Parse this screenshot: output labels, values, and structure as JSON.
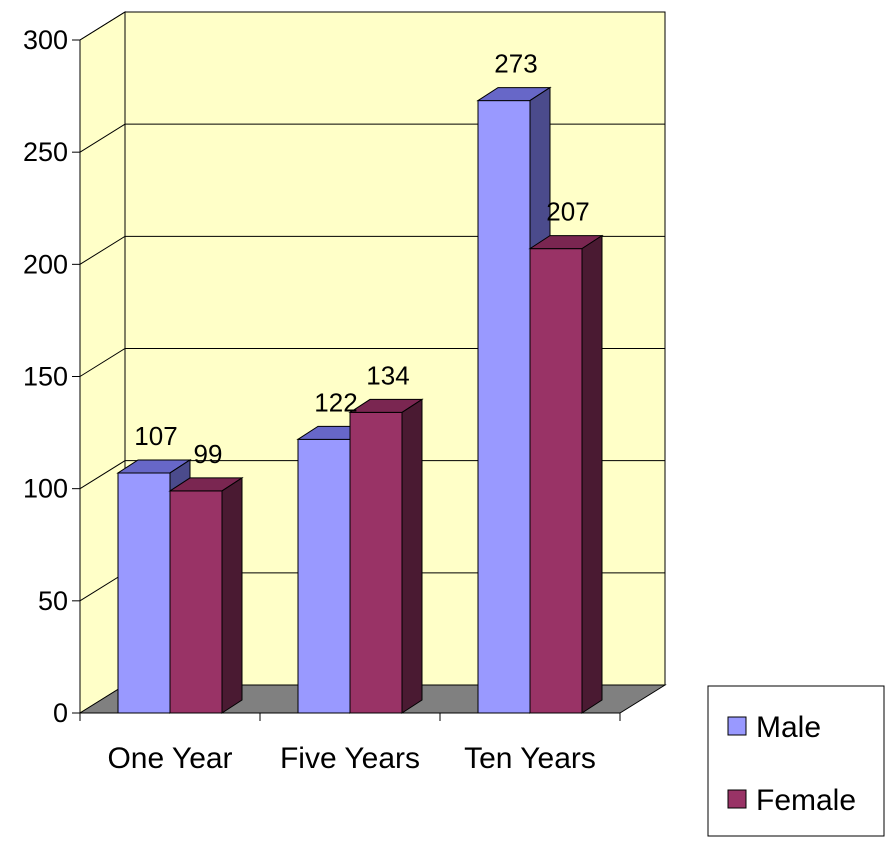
{
  "chart_data": {
    "type": "bar",
    "title": "",
    "xlabel": "",
    "ylabel": "",
    "categories": [
      "One Year",
      "Five Years",
      "Ten Years"
    ],
    "series": [
      {
        "name": "Male",
        "values": [
          107,
          122,
          273
        ]
      },
      {
        "name": "Female",
        "values": [
          99,
          134,
          207
        ]
      }
    ],
    "ylim": [
      0,
      300
    ],
    "yticks": [
      0,
      50,
      100,
      150,
      200,
      250,
      300
    ],
    "grid": true,
    "three_d": true,
    "legend_position": "bottom-right",
    "data_labels": true
  },
  "colors": {
    "wall": "#FFFFC8",
    "floor": "#808080",
    "series_front": [
      "#9999FF",
      "#993366"
    ],
    "series_top": [
      "#6767C8",
      "#7A2651"
    ],
    "series_side": [
      "#4B4B8C",
      "#4A1A32"
    ]
  }
}
